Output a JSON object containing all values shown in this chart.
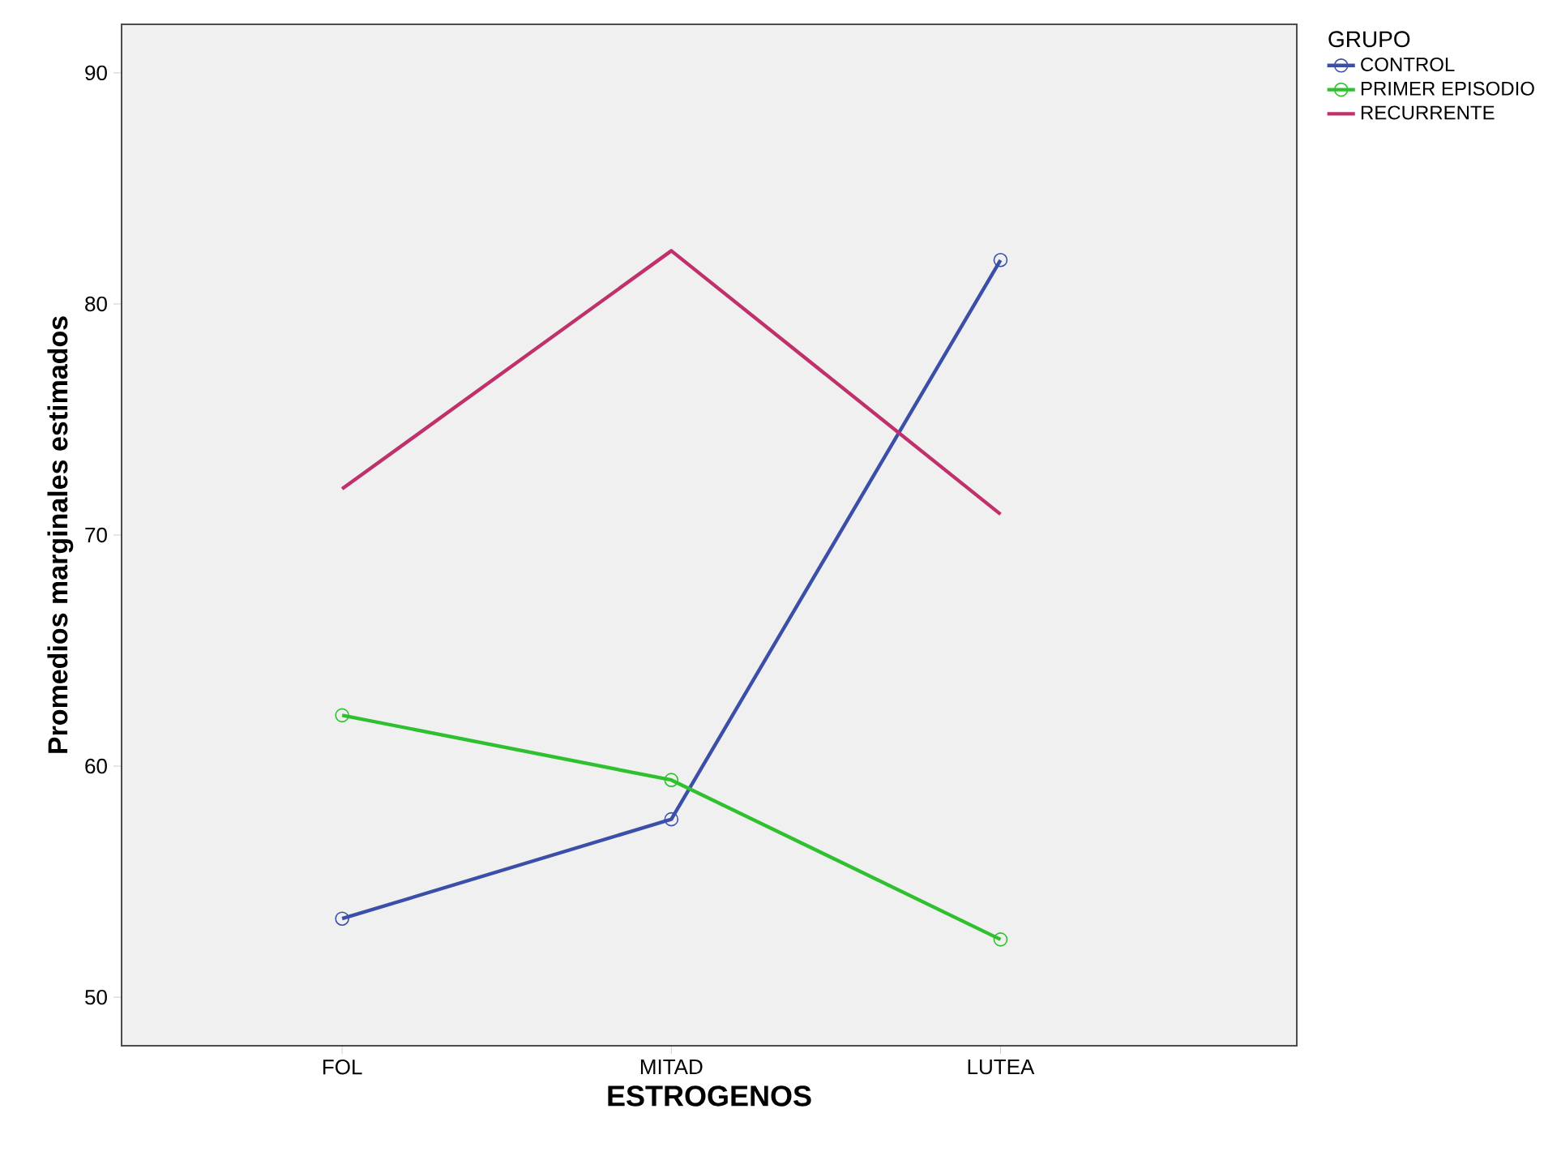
{
  "chart_data": {
    "type": "line",
    "xlabel": "ESTROGENOS",
    "ylabel": "Promedios marginales estimados",
    "legend_title": "GRUPO",
    "categories": [
      "FOL",
      "MITAD",
      "LUTEA"
    ],
    "series": [
      {
        "name": "CONTROL",
        "color": "#3c4fa8",
        "values": [
          53.4,
          57.7,
          81.9
        ]
      },
      {
        "name": "PRIMER EPISODIO",
        "color": "#2ec02e",
        "values": [
          62.2,
          59.4,
          52.5
        ]
      },
      {
        "name": "RECURRENTE",
        "color": "#c0306a",
        "values": [
          72.0,
          82.3,
          70.9
        ],
        "marker": "none"
      }
    ],
    "ylim": [
      47.9,
      92.1
    ],
    "yticks": [
      50,
      60,
      70,
      80,
      90
    ],
    "grid": false,
    "legend": "top right",
    "marker": "circle",
    "line_style": "solid"
  }
}
